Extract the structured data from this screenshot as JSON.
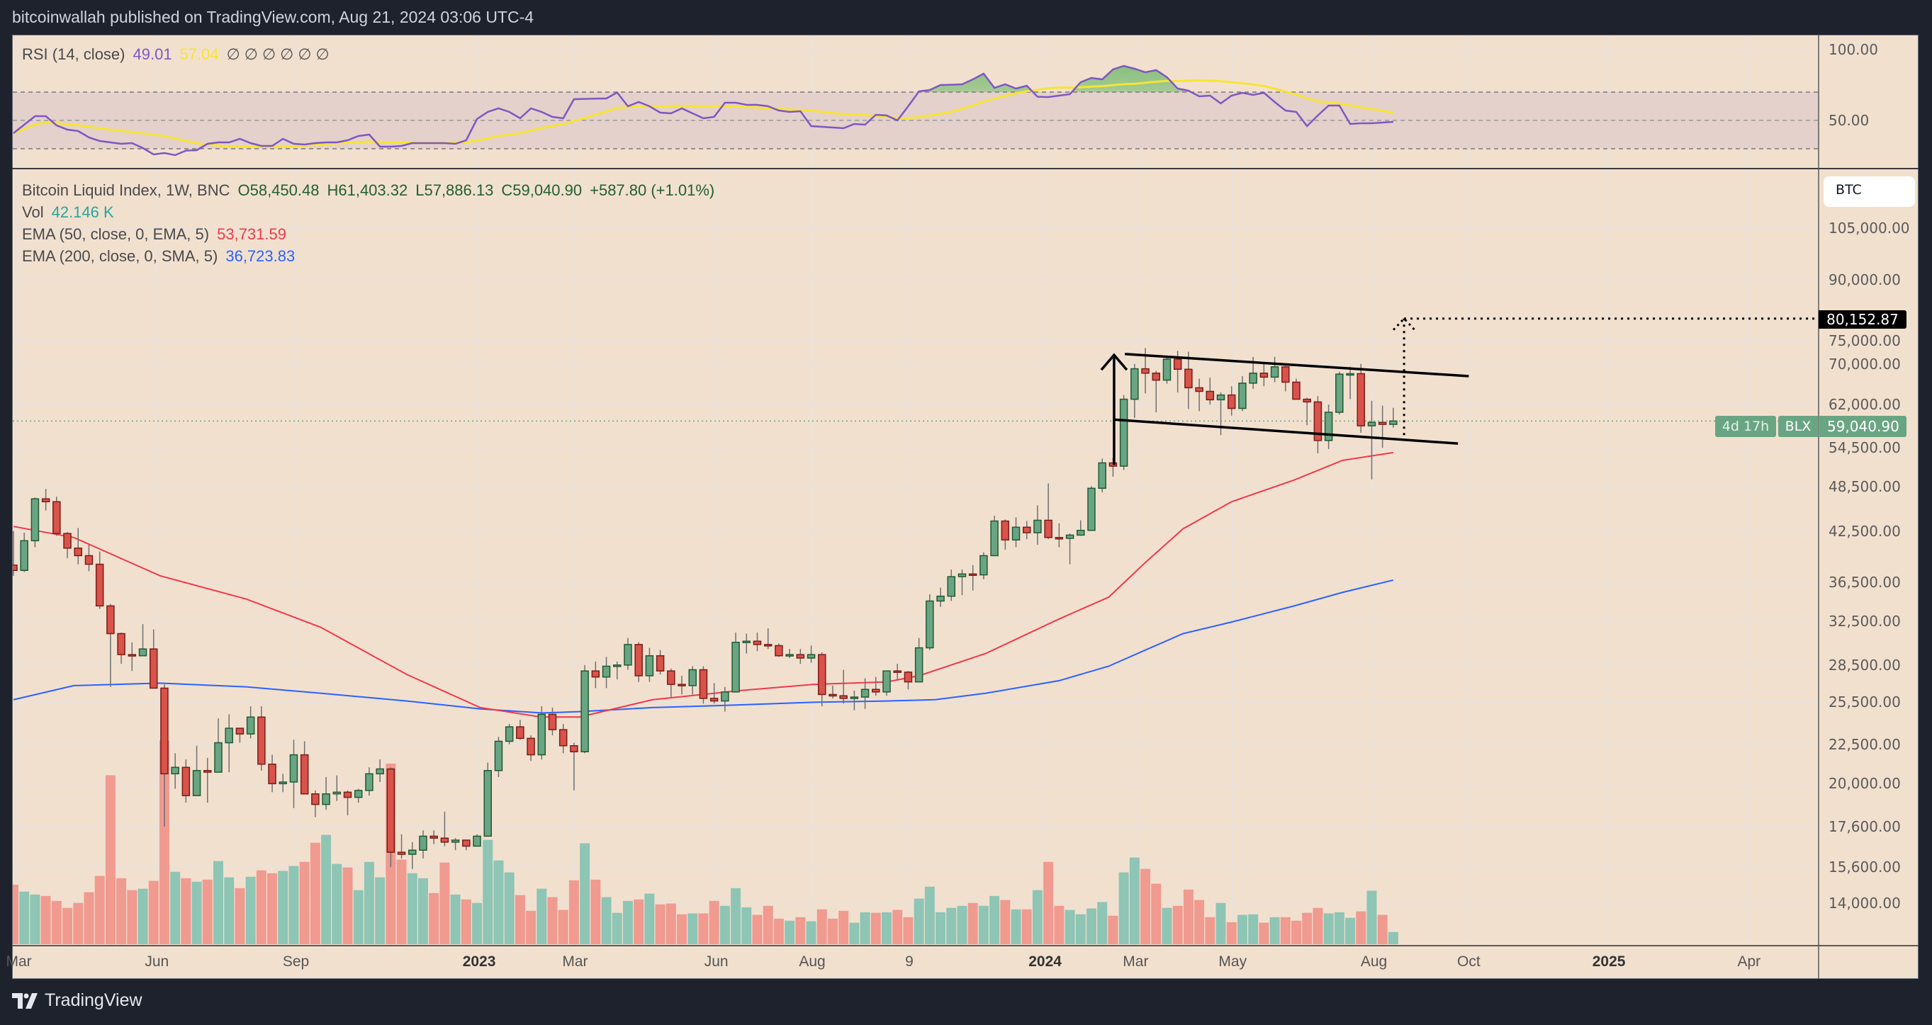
{
  "header": {
    "published": "bitcoinwallah published on TradingView.com, Aug 21, 2024 03:06 UTC-4"
  },
  "rsi_legend": {
    "title": "RSI (14, close)",
    "rsi_value": "49.01",
    "ma_value": "57.04",
    "na_values": [
      "∅",
      "∅",
      "∅",
      "∅",
      "∅",
      "∅"
    ]
  },
  "main_legend": {
    "symbol": "Bitcoin Liquid Index, 1W, BNC",
    "open": "O58,450.48",
    "high": "H61,403.32",
    "low": "L57,886.13",
    "close": "C59,040.90",
    "change": "+587.80 (+1.01%)",
    "vol_label": "Vol",
    "vol_value": "42.146 K",
    "ema50_label": "EMA (50, close, 0, EMA, 5)",
    "ema50_value": "53,731.59",
    "ema200_label": "EMA (200, close, 0, SMA, 5)",
    "ema200_value": "36,723.83"
  },
  "price_axis": {
    "currency_button": "BTC",
    "target_label": "80,152.87",
    "symbol_tag": "BLX",
    "last_price": "59,040.90",
    "countdown": "4d 17h"
  },
  "footer": {
    "brand": "TradingView"
  },
  "colors": {
    "up": "#6aa583",
    "down": "#d9534a",
    "vol_up": "#8ec5b5",
    "vol_down": "#f09a90",
    "rsi": "#7e57c2",
    "rsi_ma": "#f7e434",
    "ema50": "#f0394a",
    "ema200": "#2962ff",
    "background": "#f2e0cf"
  },
  "chart_data": {
    "type": "candlestick",
    "title": "Bitcoin Liquid Index, 1W, BNC",
    "interval": "1W",
    "first_week": "2022-03-07",
    "y_scale": "log",
    "price_ticks": [
      105000,
      90000,
      75000,
      70000,
      62000,
      54500,
      48500,
      42500,
      36500,
      32500,
      28500,
      25500,
      22500,
      20000,
      17600,
      15600,
      14000
    ],
    "price_tick_labels": [
      "105,000.00",
      "90,000.00",
      "75,000.00",
      "70,000.00",
      "62,000.00",
      "54,500.00",
      "48,500.00",
      "42,500.00",
      "36,500.00",
      "32,500.00",
      "28,500.00",
      "25,500.00",
      "22,500.00",
      "20,000.00",
      "17,600.00",
      "15,600.00",
      "14,000.00"
    ],
    "time_labels": [
      {
        "label": "Mar",
        "week_index": 0.5,
        "year": false
      },
      {
        "label": "Jun",
        "week_index": 13.3,
        "year": false
      },
      {
        "label": "Sep",
        "week_index": 26.2,
        "year": false
      },
      {
        "label": "2023",
        "week_index": 43.2,
        "year": true
      },
      {
        "label": "Mar",
        "week_index": 52.1,
        "year": false
      },
      {
        "label": "Jun",
        "week_index": 65.2,
        "year": false
      },
      {
        "label": "Aug",
        "week_index": 74.1,
        "year": false
      },
      {
        "label": "9",
        "week_index": 83.1,
        "year": false
      },
      {
        "label": "2024",
        "week_index": 95.7,
        "year": true
      },
      {
        "label": "Mar",
        "week_index": 104.1,
        "year": false
      },
      {
        "label": "May",
        "week_index": 113.1,
        "year": false
      },
      {
        "label": "Aug",
        "week_index": 126.2,
        "year": false
      },
      {
        "label": "Oct",
        "week_index": 135,
        "year": false
      },
      {
        "label": "2025",
        "week_index": 148,
        "year": true
      },
      {
        "label": "Apr",
        "week_index": 161,
        "year": false
      }
    ],
    "ohlc_thousands": [
      [
        38.4,
        42.5,
        37.2,
        37.8
      ],
      [
        37.8,
        42.3,
        37.6,
        41.3
      ],
      [
        41.3,
        47.0,
        40.5,
        46.8
      ],
      [
        46.8,
        48.2,
        45.2,
        46.4
      ],
      [
        46.4,
        47.1,
        41.9,
        42.2
      ],
      [
        42.2,
        42.4,
        39.2,
        40.4
      ],
      [
        40.4,
        42.9,
        38.5,
        39.5
      ],
      [
        39.5,
        40.8,
        37.7,
        38.5
      ],
      [
        38.5,
        40.0,
        33.7,
        34.0
      ],
      [
        34.0,
        34.2,
        26.7,
        31.3
      ],
      [
        31.3,
        31.4,
        28.6,
        29.4
      ],
      [
        29.4,
        30.5,
        28.0,
        29.3
      ],
      [
        29.3,
        32.2,
        29.3,
        29.9
      ],
      [
        29.9,
        31.7,
        26.6,
        26.6
      ],
      [
        26.6,
        26.9,
        17.6,
        20.6
      ],
      [
        20.6,
        21.9,
        19.7,
        21.0
      ],
      [
        21.0,
        21.5,
        18.9,
        19.3
      ],
      [
        19.3,
        22.4,
        19.3,
        20.8
      ],
      [
        20.8,
        21.6,
        18.9,
        20.7
      ],
      [
        20.7,
        24.3,
        20.7,
        22.6
      ],
      [
        22.6,
        24.6,
        20.7,
        23.6
      ],
      [
        23.6,
        23.6,
        22.6,
        23.2
      ],
      [
        23.2,
        25.2,
        22.9,
        24.4
      ],
      [
        24.4,
        25.2,
        20.8,
        21.2
      ],
      [
        21.2,
        21.8,
        19.5,
        20.0
      ],
      [
        20.0,
        20.6,
        19.5,
        20.1
      ],
      [
        20.1,
        22.8,
        18.6,
        21.8
      ],
      [
        21.8,
        22.7,
        19.4,
        19.4
      ],
      [
        19.4,
        19.6,
        18.1,
        18.8
      ],
      [
        18.8,
        20.4,
        18.5,
        19.4
      ],
      [
        19.4,
        20.5,
        19.0,
        19.5
      ],
      [
        19.5,
        19.6,
        18.2,
        19.2
      ],
      [
        19.2,
        19.7,
        18.9,
        19.6
      ],
      [
        19.6,
        21.0,
        19.3,
        20.6
      ],
      [
        20.6,
        21.5,
        20.1,
        20.9
      ],
      [
        20.9,
        21.0,
        15.6,
        16.3
      ],
      [
        16.3,
        17.2,
        16.0,
        16.2
      ],
      [
        16.2,
        16.8,
        15.5,
        16.4
      ],
      [
        16.4,
        17.4,
        16.0,
        17.1
      ],
      [
        17.1,
        17.4,
        16.7,
        17.0
      ],
      [
        17.0,
        18.4,
        16.6,
        16.8
      ],
      [
        16.8,
        17.0,
        16.4,
        16.9
      ],
      [
        16.9,
        16.9,
        16.4,
        16.6
      ],
      [
        16.6,
        17.2,
        16.6,
        17.1
      ],
      [
        17.1,
        21.3,
        17.1,
        20.8
      ],
      [
        20.8,
        23.0,
        20.4,
        22.7
      ],
      [
        22.7,
        23.9,
        22.5,
        23.7
      ],
      [
        23.7,
        24.2,
        22.8,
        22.9
      ],
      [
        22.9,
        23.1,
        21.4,
        21.8
      ],
      [
        21.8,
        25.2,
        21.5,
        24.6
      ],
      [
        24.6,
        25.1,
        23.1,
        23.5
      ],
      [
        23.5,
        23.9,
        21.9,
        22.4
      ],
      [
        22.4,
        22.6,
        19.6,
        22.0
      ],
      [
        22.0,
        28.5,
        21.9,
        28.0
      ],
      [
        28.0,
        28.8,
        26.6,
        27.5
      ],
      [
        27.5,
        29.2,
        26.6,
        28.4
      ],
      [
        28.4,
        28.8,
        27.3,
        28.5
      ],
      [
        28.5,
        30.9,
        28.1,
        30.3
      ],
      [
        30.3,
        30.5,
        27.1,
        27.6
      ],
      [
        27.6,
        30.0,
        27.1,
        29.3
      ],
      [
        29.3,
        29.8,
        27.7,
        28.0
      ],
      [
        28.0,
        28.2,
        25.9,
        26.9
      ],
      [
        26.9,
        27.6,
        26.1,
        26.8
      ],
      [
        26.8,
        28.4,
        26.1,
        28.1
      ],
      [
        28.1,
        28.4,
        25.4,
        25.8
      ],
      [
        25.8,
        27.0,
        25.4,
        25.6
      ],
      [
        25.6,
        26.7,
        24.8,
        26.3
      ],
      [
        26.3,
        31.4,
        26.3,
        30.5
      ],
      [
        30.5,
        31.3,
        29.5,
        30.6
      ],
      [
        30.6,
        31.4,
        29.7,
        30.3
      ],
      [
        30.3,
        31.8,
        29.9,
        30.2
      ],
      [
        30.2,
        30.4,
        29.2,
        29.3
      ],
      [
        29.3,
        29.9,
        29.1,
        29.4
      ],
      [
        29.4,
        29.9,
        28.6,
        29.1
      ],
      [
        29.1,
        30.2,
        28.7,
        29.4
      ],
      [
        29.4,
        29.6,
        25.2,
        26.1
      ],
      [
        26.1,
        26.8,
        25.8,
        26.0
      ],
      [
        26.0,
        28.1,
        25.4,
        25.8
      ],
      [
        25.8,
        26.4,
        24.9,
        25.9
      ],
      [
        25.9,
        27.4,
        25.0,
        26.5
      ],
      [
        26.5,
        27.5,
        26.0,
        26.3
      ],
      [
        26.3,
        28.0,
        26.0,
        28.0
      ],
      [
        28.0,
        28.6,
        27.2,
        27.9
      ],
      [
        27.9,
        28.0,
        26.5,
        27.1
      ],
      [
        27.1,
        30.9,
        27.1,
        30.0
      ],
      [
        30.0,
        35.2,
        29.8,
        34.5
      ],
      [
        34.5,
        35.9,
        33.9,
        35.0
      ],
      [
        35.0,
        37.9,
        34.5,
        37.1
      ],
      [
        37.1,
        37.9,
        35.1,
        37.4
      ],
      [
        37.4,
        38.4,
        35.6,
        37.3
      ],
      [
        37.3,
        39.9,
        36.8,
        39.5
      ],
      [
        39.5,
        44.5,
        39.5,
        43.8
      ],
      [
        43.8,
        44.0,
        40.2,
        41.4
      ],
      [
        41.4,
        44.3,
        40.5,
        43.0
      ],
      [
        43.0,
        43.8,
        41.5,
        42.3
      ],
      [
        42.3,
        45.9,
        40.8,
        43.9
      ],
      [
        43.9,
        49.0,
        41.5,
        41.7
      ],
      [
        41.7,
        43.5,
        40.5,
        41.6
      ],
      [
        41.6,
        42.2,
        38.5,
        42.0
      ],
      [
        42.0,
        43.9,
        41.9,
        42.6
      ],
      [
        42.6,
        48.6,
        42.6,
        48.3
      ],
      [
        48.3,
        52.8,
        47.7,
        52.1
      ],
      [
        52.1,
        52.9,
        50.0,
        51.6
      ],
      [
        51.6,
        63.8,
        51.0,
        63.0
      ],
      [
        63.0,
        70.0,
        59.6,
        69.0
      ],
      [
        69.0,
        73.4,
        64.1,
        68.1
      ],
      [
        68.1,
        68.6,
        60.6,
        66.7
      ],
      [
        66.7,
        71.8,
        66.0,
        71.0
      ],
      [
        71.0,
        72.8,
        64.3,
        68.9
      ],
      [
        68.9,
        72.6,
        61.2,
        65.2
      ],
      [
        65.2,
        67.0,
        60.8,
        64.5
      ],
      [
        64.5,
        67.2,
        62.0,
        62.9
      ],
      [
        62.9,
        64.3,
        56.6,
        63.8
      ],
      [
        63.8,
        65.5,
        60.0,
        61.3
      ],
      [
        61.3,
        67.5,
        60.8,
        66.1
      ],
      [
        66.1,
        71.5,
        65.0,
        68.1
      ],
      [
        68.1,
        70.0,
        65.5,
        67.3
      ],
      [
        67.3,
        71.5,
        66.3,
        69.4
      ],
      [
        69.4,
        69.8,
        64.5,
        66.3
      ],
      [
        66.3,
        67.0,
        63.0,
        63.0
      ],
      [
        63.0,
        63.3,
        58.3,
        62.5
      ],
      [
        62.5,
        63.6,
        53.6,
        55.7
      ],
      [
        55.7,
        62.0,
        54.3,
        60.6
      ],
      [
        60.6,
        68.4,
        60.2,
        67.9
      ],
      [
        67.9,
        69.4,
        63.0,
        68.0
      ],
      [
        68.0,
        70.0,
        57.0,
        58.2
      ],
      [
        58.2,
        62.7,
        49.6,
        58.8
      ],
      [
        58.8,
        61.8,
        54.5,
        58.45
      ],
      [
        58.45,
        61.403,
        57.886,
        59.041
      ]
    ],
    "volume_k": [
      205,
      181,
      171,
      166,
      149,
      125,
      142,
      179,
      235,
      581,
      227,
      186,
      191,
      218,
      700,
      249,
      227,
      215,
      222,
      286,
      230,
      193,
      232,
      254,
      244,
      252,
      269,
      283,
      349,
      376,
      276,
      264,
      186,
      283,
      230,
      621,
      291,
      244,
      227,
      176,
      281,
      171,
      154,
      142,
      359,
      288,
      247,
      169,
      115,
      191,
      162,
      118,
      220,
      347,
      222,
      162,
      108,
      149,
      154,
      174,
      137,
      140,
      103,
      106,
      106,
      149,
      132,
      193,
      127,
      101,
      132,
      88,
      81,
      93,
      79,
      120,
      88,
      115,
      74,
      110,
      108,
      110,
      118,
      93,
      157,
      198,
      110,
      125,
      132,
      142,
      132,
      166,
      152,
      120,
      120,
      186,
      283,
      132,
      118,
      103,
      123,
      145,
      98,
      247,
      298,
      259,
      208,
      125,
      132,
      188,
      152,
      93,
      142,
      76,
      101,
      103,
      74,
      93,
      93,
      81,
      108,
      125,
      106,
      110,
      91,
      113,
      184,
      101,
      42.146
    ],
    "rsi": [
      41,
      47,
      53,
      53,
      46.5,
      43.5,
      42.5,
      38,
      35.5,
      34.5,
      33.5,
      34,
      30.5,
      26,
      27,
      25.5,
      28.7,
      29,
      33.5,
      34.5,
      34.5,
      37,
      34,
      32,
      32,
      37,
      33.5,
      33,
      34,
      34.5,
      34.5,
      36,
      39,
      40,
      31.5,
      31.5,
      32,
      34,
      34,
      34,
      34,
      33.5,
      36,
      51,
      56,
      58.5,
      56,
      51.5,
      58.5,
      56,
      52.5,
      51.5,
      65,
      65.2,
      65.4,
      65.5,
      69.7,
      60,
      63,
      60,
      55.5,
      55,
      58.5,
      55,
      51.5,
      52.5,
      62.5,
      62.5,
      61,
      61,
      60,
      57,
      56,
      56.5,
      46,
      45.5,
      45,
      44.5,
      47.5,
      47,
      54,
      53.5,
      50,
      60,
      70.5,
      71.5,
      75,
      75.2,
      75.5,
      79,
      83,
      73,
      75.5,
      72.5,
      74.5,
      66.7,
      66.5,
      67.5,
      68.5,
      77,
      80,
      79,
      86,
      88.5,
      86.5,
      84,
      85.5,
      80.5,
      72.5,
      71,
      67,
      67.5,
      62,
      67.5,
      69.5,
      68,
      69.5,
      63,
      57,
      56,
      46,
      53.5,
      60.5,
      60.5,
      47.5,
      48,
      48,
      48.5,
      49.01
    ],
    "rsi_levels": {
      "upper": 70,
      "middle": 50,
      "lower": 30,
      "axis_labels": [
        "100.00",
        "50.00"
      ],
      "axis_values": [
        100,
        50
      ]
    },
    "ema50": [
      [
        0,
        43.1
      ],
      [
        5.6,
        41.7
      ],
      [
        13.6,
        37.2
      ],
      [
        21.6,
        34.7
      ],
      [
        28.5,
        31.9
      ],
      [
        36.5,
        27.7
      ],
      [
        43.3,
        25.1
      ],
      [
        49,
        24.4
      ],
      [
        52.5,
        24.4
      ],
      [
        59.3,
        25.7
      ],
      [
        67.3,
        26.4
      ],
      [
        74.2,
        26.9
      ],
      [
        81,
        27.1
      ],
      [
        84,
        27.6
      ],
      [
        90.2,
        29.5
      ],
      [
        97,
        32.7
      ],
      [
        101.6,
        34.9
      ],
      [
        105,
        38.7
      ],
      [
        108.5,
        42.8
      ],
      [
        113,
        46.4
      ],
      [
        118.8,
        49.5
      ],
      [
        123.3,
        52.5
      ],
      [
        128,
        53.73
      ]
    ],
    "ema200": [
      [
        0,
        25.7
      ],
      [
        5.6,
        26.8
      ],
      [
        13.6,
        27.0
      ],
      [
        21.6,
        26.7
      ],
      [
        28.5,
        26.2
      ],
      [
        36.5,
        25.6
      ],
      [
        43.3,
        25.0
      ],
      [
        49,
        24.7
      ],
      [
        52.5,
        24.8
      ],
      [
        59.3,
        25.1
      ],
      [
        67.3,
        25.3
      ],
      [
        74.2,
        25.5
      ],
      [
        81,
        25.6
      ],
      [
        85.5,
        25.7
      ],
      [
        90.2,
        26.2
      ],
      [
        97,
        27.2
      ],
      [
        101.6,
        28.4
      ],
      [
        105,
        29.8
      ],
      [
        108.5,
        31.3
      ],
      [
        113,
        32.4
      ],
      [
        118.8,
        34.0
      ],
      [
        123.3,
        35.4
      ],
      [
        128,
        36.72
      ]
    ],
    "drawings": {
      "channel_upper": [
        [
          103.1,
          72.1
        ],
        [
          135,
          67.5
        ]
      ],
      "channel_lower": [
        [
          102,
          59.3
        ],
        [
          134,
          55.2
        ]
      ],
      "pole_arrow": [
        [
          102.1,
          51.8
        ],
        [
          102.1,
          71.9
        ]
      ],
      "target_projection": [
        [
          129,
          56.6
        ],
        [
          129,
          80.15287
        ]
      ]
    }
  }
}
